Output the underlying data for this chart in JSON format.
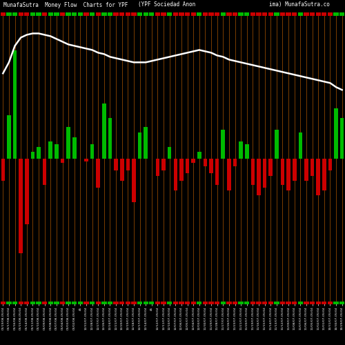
{
  "title_left": "MunafaSutra  Money Flow  Charts for YPF",
  "title_mid": "(YPF Sociedad Anon",
  "title_right": "ima) MunafaSutra.co",
  "background_color": "#000000",
  "bar_color_green": "#00bb00",
  "bar_color_red": "#cc0000",
  "orange_line_color": "#cc6600",
  "line_color": "#ffffff",
  "categories": [
    "01/19/08-05/04",
    "01/17/08-05/04",
    "01/16/08-05/04",
    "01/15/08-05/04",
    "01/14/08-05/04",
    "01/11/08-05/04",
    "01/10/08-05/04",
    "01/09/08-05/04",
    "01/08/08-05/04",
    "01/07/08-05/04",
    "01/04/08-05/04",
    "01/03/08-05/04",
    "01/02/08-05/04",
    "45",
    "12/31/07-05/04",
    "12/28/07-05/04",
    "12/27/07-05/04",
    "12/26/07-05/04",
    "12/24/07-05/04",
    "12/21/07-05/04",
    "12/20/07-05/04",
    "12/19/07-05/04",
    "12/18/07-05/04",
    "12/17/07-05/04",
    "12/14/07-05/04",
    "45",
    "12/12/07-05/04",
    "12/11/07-05/04",
    "12/10/07-05/04",
    "12/07/07-05/04",
    "12/06/07-05/04",
    "12/05/07-05/04",
    "12/04/07-05/04",
    "12/03/07-05/04",
    "11/30/07-05/04",
    "11/29/07-05/04",
    "11/28/07-05/04",
    "11/27/07-05/04",
    "11/26/07-05/04",
    "11/23/07-05/04",
    "11/21/07-05/04",
    "11/20/07-05/04",
    "11/19/07-05/04",
    "11/16/07-05/04",
    "11/15/07-05/04",
    "11/14/07-05/04",
    "11/13/07-05/04",
    "11/12/07-05/04",
    "11/09/07-05/04",
    "11/08/07-05/04",
    "11/07/07-05/04",
    "11/06/07-05/04",
    "11/05/07-05/04",
    "11/02/07-05/04",
    "11/01/07-05/04",
    "10/31/07-05/04",
    "10/30/07-05/04",
    "10/29/07-05/04"
  ],
  "bar_heights": [
    -15,
    30,
    75,
    -65,
    -45,
    5,
    8,
    -18,
    12,
    10,
    -3,
    22,
    15,
    0,
    -2,
    10,
    -20,
    38,
    28,
    -8,
    -15,
    -8,
    -30,
    18,
    22,
    0,
    -12,
    -8,
    8,
    -22,
    -15,
    -10,
    -3,
    5,
    -5,
    -10,
    -18,
    20,
    -22,
    -5,
    12,
    10,
    -18,
    -25,
    -20,
    -12,
    20,
    -18,
    -22,
    -15,
    18,
    -15,
    -12,
    -25,
    -22,
    -8,
    35,
    28
  ],
  "line_values": [
    0.62,
    0.7,
    0.82,
    0.88,
    0.9,
    0.91,
    0.91,
    0.9,
    0.89,
    0.87,
    0.85,
    0.83,
    0.82,
    0.81,
    0.8,
    0.79,
    0.77,
    0.76,
    0.74,
    0.73,
    0.72,
    0.71,
    0.7,
    0.7,
    0.7,
    0.71,
    0.72,
    0.73,
    0.74,
    0.75,
    0.76,
    0.77,
    0.78,
    0.79,
    0.78,
    0.77,
    0.75,
    0.74,
    0.72,
    0.71,
    0.7,
    0.69,
    0.68,
    0.67,
    0.66,
    0.65,
    0.64,
    0.63,
    0.62,
    0.61,
    0.6,
    0.59,
    0.58,
    0.57,
    0.56,
    0.55,
    0.52,
    0.5
  ],
  "ylim": [
    -100,
    100
  ],
  "figsize": [
    5.0,
    5.0
  ],
  "dpi": 100
}
